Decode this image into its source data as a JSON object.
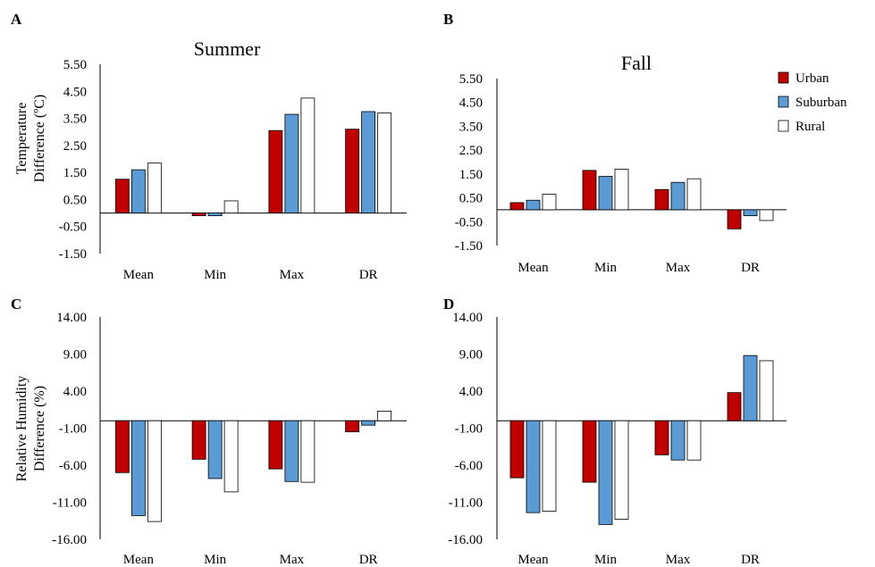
{
  "colors": {
    "urban": "#c00000",
    "suburban": "#5b9bd5",
    "rural": "#ffffff",
    "edge": "#000000"
  },
  "legend": {
    "position": "top-right",
    "items": [
      {
        "label": "Urban",
        "color": "#c00000"
      },
      {
        "label": "Suburban",
        "color": "#5b9bd5"
      },
      {
        "label": "Rural",
        "color": "#ffffff"
      }
    ]
  },
  "chart_data": [
    {
      "panel": "A",
      "type": "bar",
      "title": "Summer",
      "ylabel": [
        "Temperature",
        "Difference (ºC)"
      ],
      "categories": [
        "Mean",
        "Min",
        "Max",
        "DR"
      ],
      "ylim": [
        -1.5,
        5.5
      ],
      "yticks": [
        "5.50",
        "4.50",
        "3.50",
        "2.50",
        "1.50",
        "0.50",
        "-0.50",
        "-1.50"
      ],
      "series": [
        {
          "name": "Urban",
          "values": [
            1.25,
            -0.1,
            3.05,
            3.1
          ]
        },
        {
          "name": "Suburban",
          "values": [
            1.6,
            -0.1,
            3.65,
            3.75
          ]
        },
        {
          "name": "Rural",
          "values": [
            1.85,
            0.45,
            4.25,
            3.7
          ]
        }
      ]
    },
    {
      "panel": "B",
      "type": "bar",
      "title": "Fall",
      "ylabel": [],
      "categories": [
        "Mean",
        "Min",
        "Max",
        "DR"
      ],
      "ylim": [
        -1.5,
        5.5
      ],
      "yticks": [
        "5.50",
        "4.50",
        "3.50",
        "2.50",
        "1.50",
        "0.50",
        "-0.50",
        "-1.50"
      ],
      "series": [
        {
          "name": "Urban",
          "values": [
            0.3,
            1.65,
            0.85,
            -0.8
          ]
        },
        {
          "name": "Suburban",
          "values": [
            0.4,
            1.4,
            1.15,
            -0.25
          ]
        },
        {
          "name": "Rural",
          "values": [
            0.65,
            1.7,
            1.3,
            -0.45
          ]
        }
      ]
    },
    {
      "panel": "C",
      "type": "bar",
      "title": "",
      "ylabel": [
        "Relative Humidity",
        "Difference (%)"
      ],
      "categories": [
        "Mean",
        "Min",
        "Max",
        "DR"
      ],
      "ylim": [
        -16,
        14
      ],
      "yticks": [
        "14.00",
        "9.00",
        "4.00",
        "-1.00",
        "-6.00",
        "-11.00",
        "-16.00"
      ],
      "series": [
        {
          "name": "Urban",
          "values": [
            -7.0,
            -5.2,
            -6.5,
            -1.5
          ]
        },
        {
          "name": "Suburban",
          "values": [
            -12.8,
            -7.8,
            -8.2,
            -0.6
          ]
        },
        {
          "name": "Rural",
          "values": [
            -13.6,
            -9.6,
            -8.3,
            1.3
          ]
        }
      ]
    },
    {
      "panel": "D",
      "type": "bar",
      "title": "",
      "ylabel": [],
      "categories": [
        "Mean",
        "Min",
        "Max",
        "DR"
      ],
      "ylim": [
        -16,
        14
      ],
      "yticks": [
        "14.00",
        "9.00",
        "4.00",
        "-1.00",
        "-6.00",
        "-11.00",
        "-16.00"
      ],
      "series": [
        {
          "name": "Urban",
          "values": [
            -7.7,
            -8.3,
            -4.6,
            3.8
          ]
        },
        {
          "name": "Suburban",
          "values": [
            -12.4,
            -14.0,
            -5.3,
            8.8
          ]
        },
        {
          "name": "Rural",
          "values": [
            -12.2,
            -13.3,
            -5.3,
            8.1
          ]
        }
      ]
    }
  ]
}
